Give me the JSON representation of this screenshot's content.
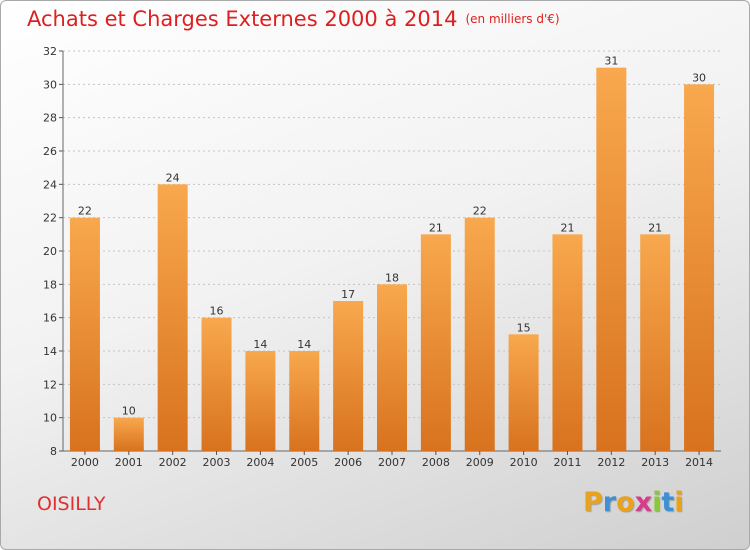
{
  "header": {
    "title": "Achats et Charges Externes 2000 à 2014",
    "unit": "(en milliers d'€)"
  },
  "footer": {
    "city": "OISILLY",
    "brand_letters": [
      "P",
      "r",
      "o",
      "x",
      "i",
      "t",
      "i"
    ],
    "brand_colors": [
      "#e8a21c",
      "#3d8fd6",
      "#e8a21c",
      "#d63b8c",
      "#8cc63f",
      "#3d8fd6",
      "#e8a21c"
    ]
  },
  "chart_data": {
    "type": "bar",
    "categories": [
      "2000",
      "2001",
      "2002",
      "2003",
      "2004",
      "2005",
      "2006",
      "2007",
      "2008",
      "2009",
      "2010",
      "2011",
      "2012",
      "2013",
      "2014"
    ],
    "values": [
      22,
      10,
      24,
      16,
      14,
      14,
      17,
      18,
      21,
      22,
      15,
      21,
      31,
      21,
      30
    ],
    "ylim": [
      8,
      32
    ],
    "yticks": [
      8,
      10,
      12,
      14,
      16,
      18,
      20,
      22,
      24,
      26,
      28,
      30,
      32
    ],
    "grid": "horizontal-dotted",
    "bar_color_top": "#f8a84e",
    "bar_color_bottom": "#d8721e"
  }
}
